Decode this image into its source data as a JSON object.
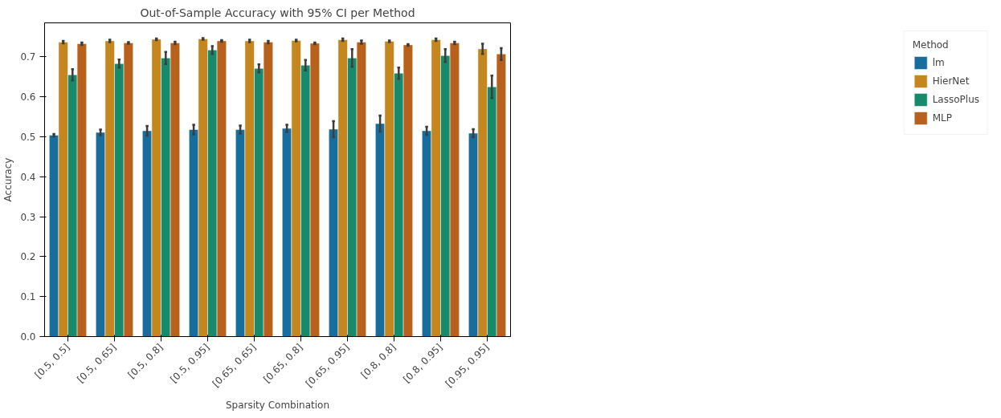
{
  "chart_data": {
    "type": "bar",
    "title": "Out-of-Sample Accuracy with 95% CI per Method",
    "xlabel": "Sparsity Combination",
    "ylabel": "Accuracy",
    "legend_title": "Method",
    "legend": "right",
    "grid": false,
    "categories": [
      "[0.5, 0.5]",
      "[0.5, 0.65]",
      "[0.5, 0.8]",
      "[0.5, 0.95]",
      "[0.65, 0.65]",
      "[0.65, 0.8]",
      "[0.65, 0.95]",
      "[0.8, 0.8]",
      "[0.8, 0.95]",
      "[0.95, 0.95]"
    ],
    "ylim": [
      0,
      0.785
    ],
    "yticks": [
      {
        "value": 0,
        "label": "0.0"
      },
      0.1,
      0.2,
      0.3,
      0.4,
      0.5,
      0.6,
      0.7
    ],
    "series": [
      {
        "name": "lm",
        "color": "#176d9c",
        "values": [
          0.504,
          0.511,
          0.515,
          0.518,
          0.518,
          0.521,
          0.519,
          0.533,
          0.515,
          0.509
        ],
        "errors": [
          0.003,
          0.007,
          0.012,
          0.012,
          0.01,
          0.009,
          0.02,
          0.02,
          0.01,
          0.01
        ]
      },
      {
        "name": "HierNet",
        "color": "#c4871f",
        "values": [
          0.737,
          0.74,
          0.744,
          0.745,
          0.74,
          0.741,
          0.743,
          0.739,
          0.743,
          0.72
        ],
        "errors": [
          0.003,
          0.003,
          0.002,
          0.002,
          0.003,
          0.002,
          0.003,
          0.002,
          0.003,
          0.013
        ]
      },
      {
        "name": "LassoPlus",
        "color": "#168a6a",
        "values": [
          0.655,
          0.683,
          0.697,
          0.717,
          0.671,
          0.679,
          0.697,
          0.659,
          0.703,
          0.625
        ],
        "errors": [
          0.014,
          0.01,
          0.015,
          0.01,
          0.01,
          0.013,
          0.022,
          0.014,
          0.016,
          0.028
        ]
      },
      {
        "name": "MLP",
        "color": "#b8611d",
        "values": [
          0.733,
          0.735,
          0.735,
          0.74,
          0.737,
          0.734,
          0.737,
          0.73,
          0.735,
          0.707
        ],
        "errors": [
          0.003,
          0.002,
          0.003,
          0.002,
          0.003,
          0.002,
          0.004,
          0.002,
          0.003,
          0.015
        ]
      }
    ]
  }
}
